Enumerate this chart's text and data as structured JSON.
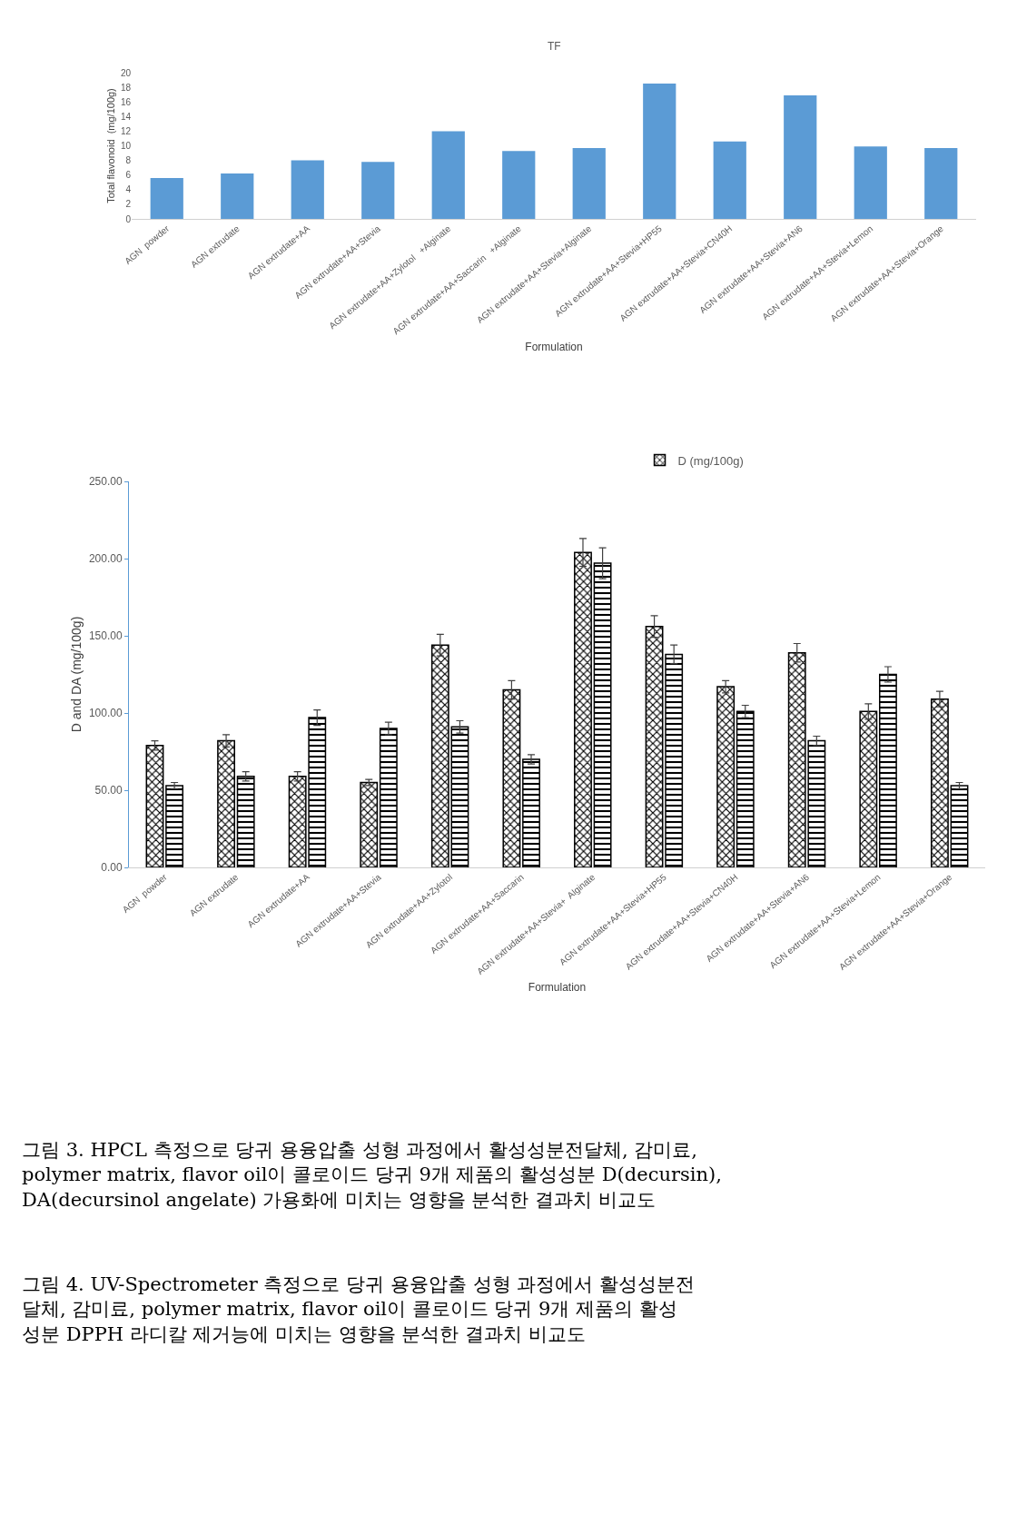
{
  "chart_data": [
    {
      "type": "bar",
      "title": "TF",
      "xlabel": "Formulation",
      "ylabel": "Total flavonoid  (mg/100g)",
      "categories": [
        "AGN  powder",
        "AGN extrudate",
        "AGN extrudate+AA",
        "AGN extrudate+AA+Stevia",
        "AGN extrudate+AA+Zylotol   +Alginate",
        "AGN extrudate+AA+Saccarin   +Alginate",
        "AGN extrudate+AA+Stevia+Alginate",
        "AGN extrudate+AA+Stevia+HP55",
        "AGN extrudate+AA+Stevia+CN40H",
        "AGN extrudate+AA+Stevia+AN6",
        "AGN extrudate+AA+Stevia+Lemon",
        "AGN extrudate+AA+Stevia+Orange"
      ],
      "series": [
        {
          "color": "#5b9bd5",
          "values": [
            5.6,
            6.2,
            8.0,
            7.8,
            12.0,
            9.3,
            9.7,
            18.5,
            10.6,
            16.9,
            9.9,
            9.7
          ]
        }
      ],
      "ylim": [
        0,
        20
      ],
      "yticks": [
        0,
        2,
        4,
        6,
        8,
        10,
        12,
        14,
        16,
        18,
        20
      ],
      "legend": false
    },
    {
      "type": "bar",
      "xlabel": "Formulation",
      "ylabel": "D and DA (mg/100g)",
      "categories": [
        "AGN  powder",
        "AGN extrudate",
        "AGN extrudate+AA",
        "AGN extrudate+AA+Stevia",
        "AGN extrudate+AA+Zylotol",
        "AGN extrudate+AA+Saccarin",
        "AGN extrudate+AA+Stevia+  Alginate",
        "AGN extrudate+AA+Stevia+HP55",
        "AGN extrudate+AA+Stevia+CN40H",
        "AGN extrudate+AA+Stevia+AN6",
        "AGN extrudate+AA+Stevia+Lemon",
        "AGN extrudate+AA+Stevia+Orange"
      ],
      "series": [
        {
          "name": "D (mg/100g)",
          "color": "#000000",
          "values": [
            79,
            82,
            59,
            55,
            144,
            115,
            204,
            156,
            117,
            139,
            101,
            109
          ],
          "errors": [
            3,
            4,
            3,
            2,
            7,
            6,
            9,
            7,
            4,
            6,
            5,
            5
          ]
        },
        {
          "color": "#000000",
          "values": [
            53,
            59,
            97,
            90,
            91,
            70,
            197,
            138,
            101,
            82,
            125,
            53
          ],
          "errors": [
            2,
            3,
            5,
            4,
            4,
            3,
            10,
            6,
            4,
            3,
            5,
            2
          ]
        }
      ],
      "ylim": [
        0,
        250
      ],
      "yticks": [
        {
          "value": 0,
          "label": "0.00"
        },
        {
          "value": 50,
          "label": "50.00"
        },
        {
          "value": 100,
          "label": "100.00"
        },
        {
          "value": 150,
          "label": "150.00"
        },
        {
          "value": 200,
          "label": "200.00"
        },
        {
          "value": 250,
          "label": "250.00"
        }
      ],
      "legend": "top right",
      "annotations": [
        "그림 3. HPCL 측정으로 당귀 용융압출 성형 과정에서 활성성분전달체, 감미료,\npolymer matrix, flavor oil이 콜로이드 당귀 9개 제품의 활성성분 D(decursin),\nDA(decursinol angelate) 가용화에 미치는 영향을 분석한 결과치 비교도",
        "그림 4. UV-Spectrometer 측정으로 당귀 용융압출 성형 과정에서 활성성분전\n달체, 감미료, polymer matrix, flavor oil이 콜로이드 당귀 9개 제품의 활성\n성분 DPPH 라디칼 제거능에 미치는 영향을 분석한 결과치 비교도"
      ]
    }
  ]
}
